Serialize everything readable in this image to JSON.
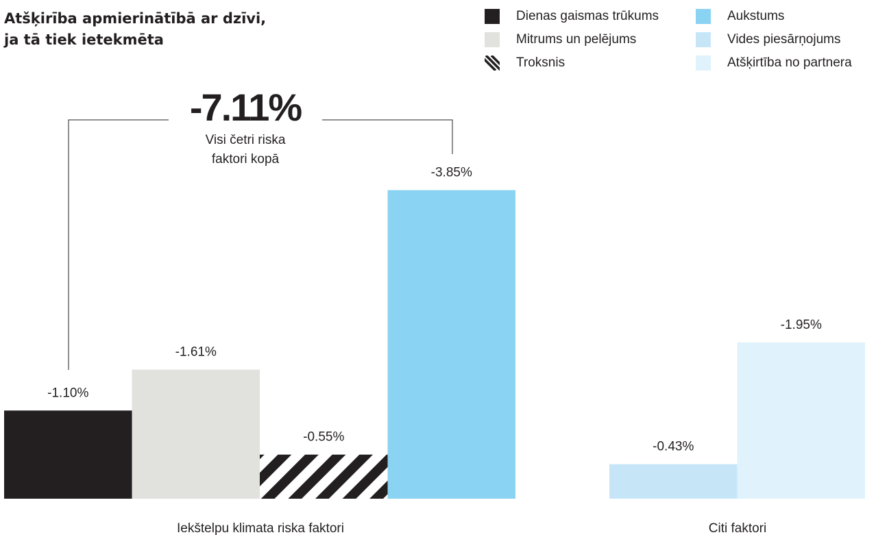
{
  "title_lines": [
    "Atšķirība apmierinātībā ar dzīvi,",
    "ja tā tiek ietekmēta"
  ],
  "legend": [
    {
      "label": "Dienas gaismas trūkums",
      "color": "#231f20",
      "pattern": "solid"
    },
    {
      "label": "Mitrums un pelējums",
      "color": "#e1e1dd",
      "pattern": "solid"
    },
    {
      "label": "Troksnis",
      "color": "#231f20",
      "pattern": "stripes"
    },
    {
      "label": "Aukstums",
      "color": "#8bd3f2",
      "pattern": "solid"
    },
    {
      "label": "Vides piesārņojums",
      "color": "#c6e6f8",
      "pattern": "solid"
    },
    {
      "label": "Atšķirtība no partnera",
      "color": "#e0f2fb",
      "pattern": "solid"
    }
  ],
  "callout": {
    "value": "-7.11%",
    "lines": [
      "Visi četri riska",
      "faktori kopā"
    ]
  },
  "chart_data": {
    "type": "bar",
    "groups": [
      "Iekštelpu klimata riska faktori",
      "Citi faktori"
    ],
    "series": [
      {
        "name": "Dienas gaismas trūkums",
        "group": 0,
        "value": -1.1,
        "label": "-1.10%",
        "color": "#231f20",
        "pattern": "solid"
      },
      {
        "name": "Mitrums un pelējums",
        "group": 0,
        "value": -1.61,
        "label": "-1.61%",
        "color": "#e1e1dd",
        "pattern": "solid"
      },
      {
        "name": "Troksnis",
        "group": 0,
        "value": -0.55,
        "label": "-0.55%",
        "color": "#231f20",
        "pattern": "stripes"
      },
      {
        "name": "Aukstums",
        "group": 0,
        "value": -3.85,
        "label": "-3.85%",
        "color": "#8bd3f2",
        "pattern": "solid"
      },
      {
        "name": "Vides piesārņojums",
        "group": 1,
        "value": -0.43,
        "label": "-0.43%",
        "color": "#c6e6f8",
        "pattern": "solid"
      },
      {
        "name": "Atšķirtība no partnera",
        "group": 1,
        "value": -1.95,
        "label": "-1.95%",
        "color": "#e0f2fb",
        "pattern": "solid"
      }
    ],
    "total": {
      "value": -7.11,
      "label": "-7.11%"
    },
    "grid": false
  }
}
